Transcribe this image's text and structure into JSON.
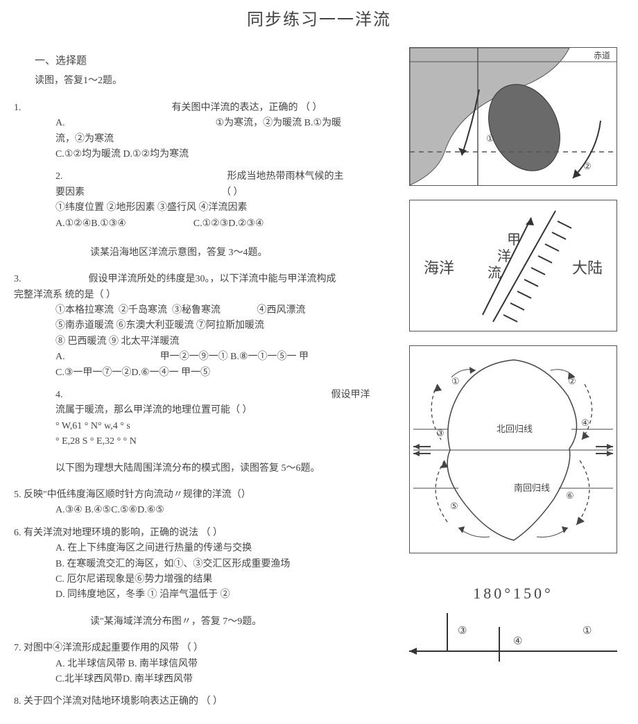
{
  "title": "同步练习一一洋流",
  "section1": {
    "heading": "一、选择题",
    "instr1": "读图，答复1〜2题。"
  },
  "q1": {
    "num": "1.",
    "stem": "有关图中洋流的表达，正确的    （   ）",
    "a_label": "A.",
    "a_text": "①为寒流，②为暖流 B.①为暖",
    "cont": "流，②为寒流",
    "cd": "C.①②均为暖流  D.①②均为寒流"
  },
  "q2": {
    "num": "2.",
    "stem": "形成当地热带雨林气候的主",
    "cont": "要因素",
    "paren": "（      ）",
    "opts1": "①纬度位置       ②地形因素       ③盛行风  ④洋流因素",
    "opts2a": "A.①②④B.①③④",
    "opts2b": "C.①②③D.②③④"
  },
  "instr2": "读某沿海地区洋流示意图，答复  3〜4题。",
  "q3": {
    "line1a": "3.",
    "line1b": "假设甲洋流所处的纬度是30。，以下洋流中能与甲洋流构成",
    "line2": "完整洋流系  统的是（   ）",
    "opts1": "①本格拉寒流  ②千岛寒流  ③秘鲁寒流               ④西风漂流",
    "opts2": "⑤南赤道暖流       ⑥东澳大利亚暖流       ⑦阿拉斯加暖流",
    "opts3": "⑧  巴西暖流  ⑨  北太平洋暖流",
    "ansA": "A.",
    "ansAtext": "甲一②一⑨一①       B.⑧一①一⑤一      甲",
    "ansC": "C.③一甲一⑦一②D.⑥一④一  甲一⑤"
  },
  "q4": {
    "num": "4.",
    "stem": "假设甲洋",
    "cont": "流属于暖流，那么甲洋流的地理位置可能（                 ）",
    "coord1": "°   W,61 °   N°   w,4 °   s",
    "coord2": "°   E,28 S °   E,32  °  °    N"
  },
  "instr3": "以下图为理想大陆周围洋流分布的模式图，读图答复        5〜6题。",
  "q5": {
    "stem": "5.  反映\"中低纬度海区顺时针方向流动〃规律的洋流（）",
    "opts": "A.③④  B.④⑤C.⑤⑥D.⑥⑤"
  },
  "q6": {
    "stem": "6.  有关洋流对地理环境的影响，正确的说法       （       ）",
    "a": "A.  在上下纬度海区之间进行热量的传递与交换",
    "b": "B.  在寒暖流交汇的海区，如①、③交汇区形成重要渔场",
    "c": "C.  厄尔尼诺现象是⑥势力增强的结果",
    "d": "D.  同纬度地区，冬季  ①  沿岸气温低于  ②"
  },
  "instr4": "读\"某海域洋流分布图〃，答复        7〜9题。",
  "q7": {
    "stem": "7.  对图中④洋流形成起重要作用的风带         （     ）",
    "a": "A.  北半球信风带  B.  南半球信风带",
    "b": "C.北半球西风带D.  南半球西风带"
  },
  "q8": {
    "stem": "8.  关于四个洋流对陆地环境影响表达正确的         （     ）"
  },
  "fig1": {
    "equator": "赤道",
    "c1": "①",
    "c2": "②",
    "land_fill": "#b8b8b8",
    "island_fill": "#6a6a6a"
  },
  "fig2": {
    "ocean": "海洋",
    "land": "大陆",
    "current": "甲洋流"
  },
  "fig3": {
    "nline": "北回归线",
    "sline": "南回归线",
    "c1": "①",
    "c2": "②",
    "c3": "③",
    "c4": "④",
    "c5": "⑤",
    "c6": "⑥"
  },
  "fig4": {
    "lon": "180°150°",
    "c1": "①",
    "c3": "③",
    "c4": "④"
  }
}
